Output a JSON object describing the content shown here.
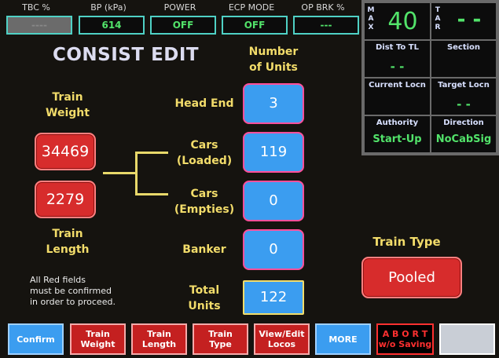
{
  "status": {
    "tbc": {
      "label": "TBC %",
      "value": "----"
    },
    "bp": {
      "label": "BP (kPa)",
      "value": "614"
    },
    "power": {
      "label": "POWER",
      "value": "OFF"
    },
    "ecp": {
      "label": "ECP MODE",
      "value": "OFF"
    },
    "opbrk": {
      "label": "OP BRK %",
      "value": "---"
    }
  },
  "info": {
    "max_letters": [
      "M",
      "A",
      "X"
    ],
    "max_value": "40",
    "tar_letters": [
      "T",
      "A",
      "R"
    ],
    "tar_value": "- -",
    "dist_to_tl": {
      "label": "Dist To TL",
      "value": "- -"
    },
    "section": {
      "label": "Section",
      "value": ""
    },
    "current_locn": {
      "label": "Current Locn",
      "value": ""
    },
    "target_locn": {
      "label": "Target Locn",
      "value": "- -"
    },
    "authority": {
      "label": "Authority",
      "value": "Start-Up"
    },
    "direction": {
      "label": "Direction",
      "value": "NoCabSig"
    }
  },
  "main": {
    "title": "CONSIST EDIT",
    "number_of_units_label": [
      "Number",
      "of Units"
    ],
    "train_weight_label": [
      "Train",
      "Weight"
    ],
    "train_weight_value": "34469",
    "train_length_value": "2279",
    "train_length_label": [
      "Train",
      "Length"
    ],
    "rows": {
      "head_end": {
        "label": [
          "Head End"
        ],
        "value": "3"
      },
      "cars_loaded": {
        "label": [
          "Cars",
          "(Loaded)"
        ],
        "value": "119"
      },
      "cars_empties": {
        "label": [
          "Cars",
          "(Empties)"
        ],
        "value": "0"
      },
      "banker": {
        "label": [
          "Banker"
        ],
        "value": "0"
      },
      "total_units": {
        "label": [
          "Total",
          "Units"
        ],
        "value": "122"
      }
    },
    "note": [
      "All Red fields",
      "must be confirmed",
      "in order to proceed."
    ],
    "train_type_label": "Train Type",
    "train_type_value": "Pooled"
  },
  "buttons": {
    "confirm": "Confirm",
    "train_weight": [
      "Train",
      "Weight"
    ],
    "train_length": [
      "Train",
      "Length"
    ],
    "train_type": [
      "Train",
      "Type"
    ],
    "view_edit_locos": [
      "View/Edit",
      "Locos"
    ],
    "more": "MORE",
    "abort": [
      "A B O R T",
      "w/o Saving"
    ]
  },
  "colors": {
    "accent_green": "#52e36a",
    "label_yellow": "#f2dc6a",
    "confirm_red": "#d72c2c",
    "value_blue": "#3b9df0"
  }
}
